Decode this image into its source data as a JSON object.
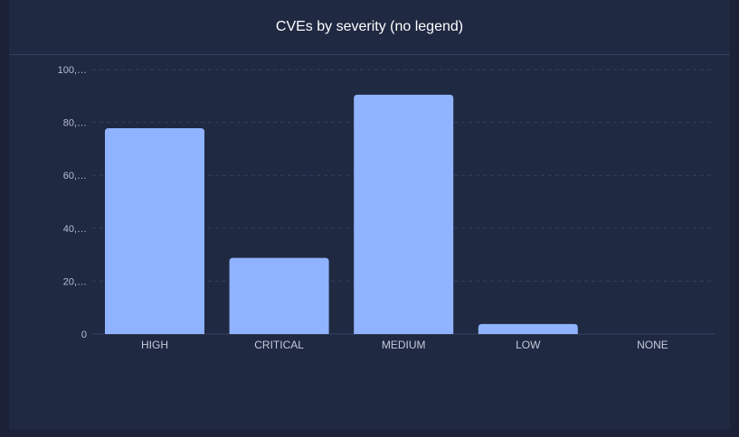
{
  "chart_data": {
    "type": "bar",
    "title": "CVEs by severity (no legend)",
    "xlabel": "",
    "ylabel": "",
    "categories": [
      "HIGH",
      "CRITICAL",
      "MEDIUM",
      "LOW",
      "NONE"
    ],
    "values": [
      77800,
      28800,
      90500,
      3800,
      0
    ],
    "ylim": [
      0,
      100000
    ],
    "y_ticks": [
      0,
      20000,
      40000,
      60000,
      80000,
      100000
    ],
    "y_tick_labels": [
      "0",
      "20,…",
      "40,…",
      "60,…",
      "80,…",
      "100,…"
    ],
    "grid": true,
    "legend": "none",
    "bar_color": "#8fb3ff",
    "background_color": "#1f2942",
    "grid_color": "#34405c"
  }
}
